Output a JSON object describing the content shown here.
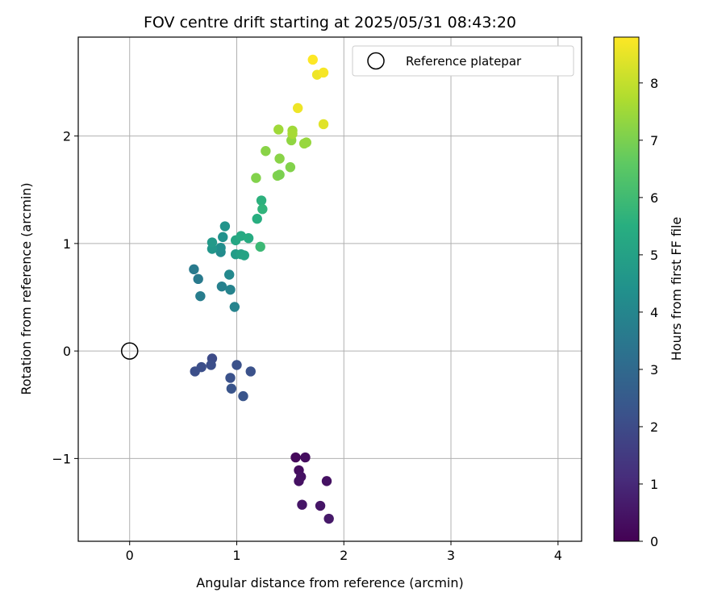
{
  "chart_data": {
    "type": "scatter",
    "title": "FOV centre drift starting at 2025/05/31 08:43:20",
    "xlabel": "Angular distance from reference (arcmin)",
    "ylabel": "Rotation from reference (arcmin)",
    "xlim": [
      -0.48,
      4.22
    ],
    "ylim": [
      -1.77,
      2.92
    ],
    "xticks": [
      0,
      1,
      2,
      3,
      4
    ],
    "xtick_labels": [
      "0",
      "1",
      "2",
      "3",
      "4"
    ],
    "yticks": [
      -1,
      0,
      1,
      2
    ],
    "ytick_labels": [
      "−1",
      "0",
      "1",
      "2"
    ],
    "grid": true,
    "legend": {
      "placement": "top-right",
      "entries": [
        "Reference platepar"
      ]
    },
    "reference_point": {
      "name": "Reference platepar",
      "x": 0,
      "y": 0
    },
    "colorbar": {
      "label": "Hours from first FF file",
      "range": [
        0,
        8.8
      ],
      "ticks": [
        0,
        1,
        2,
        3,
        4,
        5,
        6,
        7,
        8
      ],
      "colormap": "viridis"
    },
    "points": [
      {
        "x": 1.55,
        "y": -0.99,
        "c": 0.2
      },
      {
        "x": 1.64,
        "y": -0.99,
        "c": 0.3
      },
      {
        "x": 1.58,
        "y": -1.11,
        "c": 0.3
      },
      {
        "x": 1.6,
        "y": -1.17,
        "c": 0.4
      },
      {
        "x": 1.58,
        "y": -1.21,
        "c": 0.4
      },
      {
        "x": 1.84,
        "y": -1.21,
        "c": 0.4
      },
      {
        "x": 1.61,
        "y": -1.43,
        "c": 0.5
      },
      {
        "x": 1.78,
        "y": -1.44,
        "c": 0.5
      },
      {
        "x": 1.86,
        "y": -1.56,
        "c": 0.6
      },
      {
        "x": 0.77,
        "y": -0.07,
        "c": 2.0
      },
      {
        "x": 0.67,
        "y": -0.15,
        "c": 2.1
      },
      {
        "x": 0.61,
        "y": -0.19,
        "c": 2.1
      },
      {
        "x": 0.76,
        "y": -0.13,
        "c": 2.1
      },
      {
        "x": 1.0,
        "y": -0.13,
        "c": 2.2
      },
      {
        "x": 1.13,
        "y": -0.19,
        "c": 2.2
      },
      {
        "x": 0.94,
        "y": -0.25,
        "c": 2.2
      },
      {
        "x": 0.95,
        "y": -0.35,
        "c": 2.3
      },
      {
        "x": 1.06,
        "y": -0.42,
        "c": 2.3
      },
      {
        "x": 0.6,
        "y": 0.76,
        "c": 3.6
      },
      {
        "x": 0.64,
        "y": 0.67,
        "c": 3.6
      },
      {
        "x": 0.66,
        "y": 0.51,
        "c": 3.7
      },
      {
        "x": 0.86,
        "y": 0.6,
        "c": 3.8
      },
      {
        "x": 0.94,
        "y": 0.57,
        "c": 3.9
      },
      {
        "x": 0.98,
        "y": 0.41,
        "c": 3.9
      },
      {
        "x": 0.93,
        "y": 0.71,
        "c": 4.1
      },
      {
        "x": 0.85,
        "y": 0.92,
        "c": 4.2
      },
      {
        "x": 0.85,
        "y": 0.96,
        "c": 4.3
      },
      {
        "x": 0.87,
        "y": 1.06,
        "c": 4.4
      },
      {
        "x": 0.89,
        "y": 1.16,
        "c": 4.5
      },
      {
        "x": 0.77,
        "y": 0.95,
        "c": 4.6
      },
      {
        "x": 0.77,
        "y": 1.01,
        "c": 4.7
      },
      {
        "x": 0.99,
        "y": 0.9,
        "c": 4.8
      },
      {
        "x": 1.04,
        "y": 0.9,
        "c": 5.0
      },
      {
        "x": 1.07,
        "y": 0.89,
        "c": 5.1
      },
      {
        "x": 0.99,
        "y": 1.03,
        "c": 5.2
      },
      {
        "x": 1.04,
        "y": 1.07,
        "c": 5.3
      },
      {
        "x": 1.11,
        "y": 1.05,
        "c": 5.4
      },
      {
        "x": 1.19,
        "y": 1.23,
        "c": 5.5
      },
      {
        "x": 1.23,
        "y": 1.4,
        "c": 5.6
      },
      {
        "x": 1.24,
        "y": 1.32,
        "c": 5.7
      },
      {
        "x": 1.22,
        "y": 0.97,
        "c": 5.9
      },
      {
        "x": 1.18,
        "y": 1.61,
        "c": 7.1
      },
      {
        "x": 1.38,
        "y": 1.63,
        "c": 7.1
      },
      {
        "x": 1.4,
        "y": 1.64,
        "c": 7.0
      },
      {
        "x": 1.5,
        "y": 1.71,
        "c": 7.1
      },
      {
        "x": 1.4,
        "y": 1.79,
        "c": 7.2
      },
      {
        "x": 1.27,
        "y": 1.86,
        "c": 7.2
      },
      {
        "x": 1.51,
        "y": 1.96,
        "c": 7.3
      },
      {
        "x": 1.63,
        "y": 1.93,
        "c": 7.4
      },
      {
        "x": 1.65,
        "y": 1.94,
        "c": 7.4
      },
      {
        "x": 1.39,
        "y": 2.06,
        "c": 7.5
      },
      {
        "x": 1.52,
        "y": 2.05,
        "c": 7.5
      },
      {
        "x": 1.52,
        "y": 2.02,
        "c": 7.6
      },
      {
        "x": 1.81,
        "y": 2.11,
        "c": 8.4
      },
      {
        "x": 1.57,
        "y": 2.26,
        "c": 8.6
      },
      {
        "x": 1.75,
        "y": 2.57,
        "c": 8.6
      },
      {
        "x": 1.81,
        "y": 2.59,
        "c": 8.7
      },
      {
        "x": 1.71,
        "y": 2.71,
        "c": 8.8
      }
    ]
  }
}
